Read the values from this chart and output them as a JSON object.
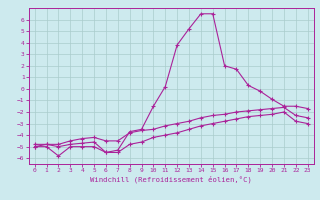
{
  "title": "",
  "xlabel": "Windchill (Refroidissement éolien,°C)",
  "ylabel": "",
  "bg_color": "#cdeaee",
  "line_color": "#aa2299",
  "grid_color": "#aacccc",
  "xlim": [
    -0.5,
    23.5
  ],
  "ylim": [
    -6.5,
    7.0
  ],
  "xticks": [
    0,
    1,
    2,
    3,
    4,
    5,
    6,
    7,
    8,
    9,
    10,
    11,
    12,
    13,
    14,
    15,
    16,
    17,
    18,
    19,
    20,
    21,
    22,
    23
  ],
  "yticks": [
    -6,
    -5,
    -4,
    -3,
    -2,
    -1,
    0,
    1,
    2,
    3,
    4,
    5,
    6
  ],
  "line1_x": [
    0,
    1,
    2,
    3,
    4,
    5,
    6,
    7,
    8,
    9,
    10,
    11,
    12,
    13,
    14,
    15,
    16,
    17,
    18,
    19,
    20,
    21,
    22,
    23
  ],
  "line1_y": [
    -5.0,
    -5.0,
    -5.8,
    -5.0,
    -5.0,
    -5.0,
    -5.5,
    -5.3,
    -3.7,
    -3.5,
    -1.5,
    0.2,
    3.8,
    5.2,
    6.5,
    6.5,
    2.0,
    1.7,
    0.3,
    -0.2,
    -0.9,
    -1.5,
    -1.5,
    -1.7
  ],
  "line2_x": [
    0,
    1,
    2,
    3,
    4,
    5,
    6,
    7,
    8,
    9,
    10,
    11,
    12,
    13,
    14,
    15,
    16,
    17,
    18,
    19,
    20,
    21,
    22,
    23
  ],
  "line2_y": [
    -4.8,
    -4.8,
    -4.8,
    -4.5,
    -4.3,
    -4.2,
    -4.5,
    -4.5,
    -3.8,
    -3.6,
    -3.5,
    -3.2,
    -3.0,
    -2.8,
    -2.5,
    -2.3,
    -2.2,
    -2.0,
    -1.9,
    -1.8,
    -1.7,
    -1.6,
    -2.3,
    -2.5
  ],
  "line3_x": [
    0,
    1,
    2,
    3,
    4,
    5,
    6,
    7,
    8,
    9,
    10,
    11,
    12,
    13,
    14,
    15,
    16,
    17,
    18,
    19,
    20,
    21,
    22,
    23
  ],
  "line3_y": [
    -5.0,
    -4.8,
    -5.0,
    -4.8,
    -4.7,
    -4.6,
    -5.5,
    -5.5,
    -4.8,
    -4.6,
    -4.2,
    -4.0,
    -3.8,
    -3.5,
    -3.2,
    -3.0,
    -2.8,
    -2.6,
    -2.4,
    -2.3,
    -2.2,
    -2.0,
    -2.8,
    -3.0
  ]
}
